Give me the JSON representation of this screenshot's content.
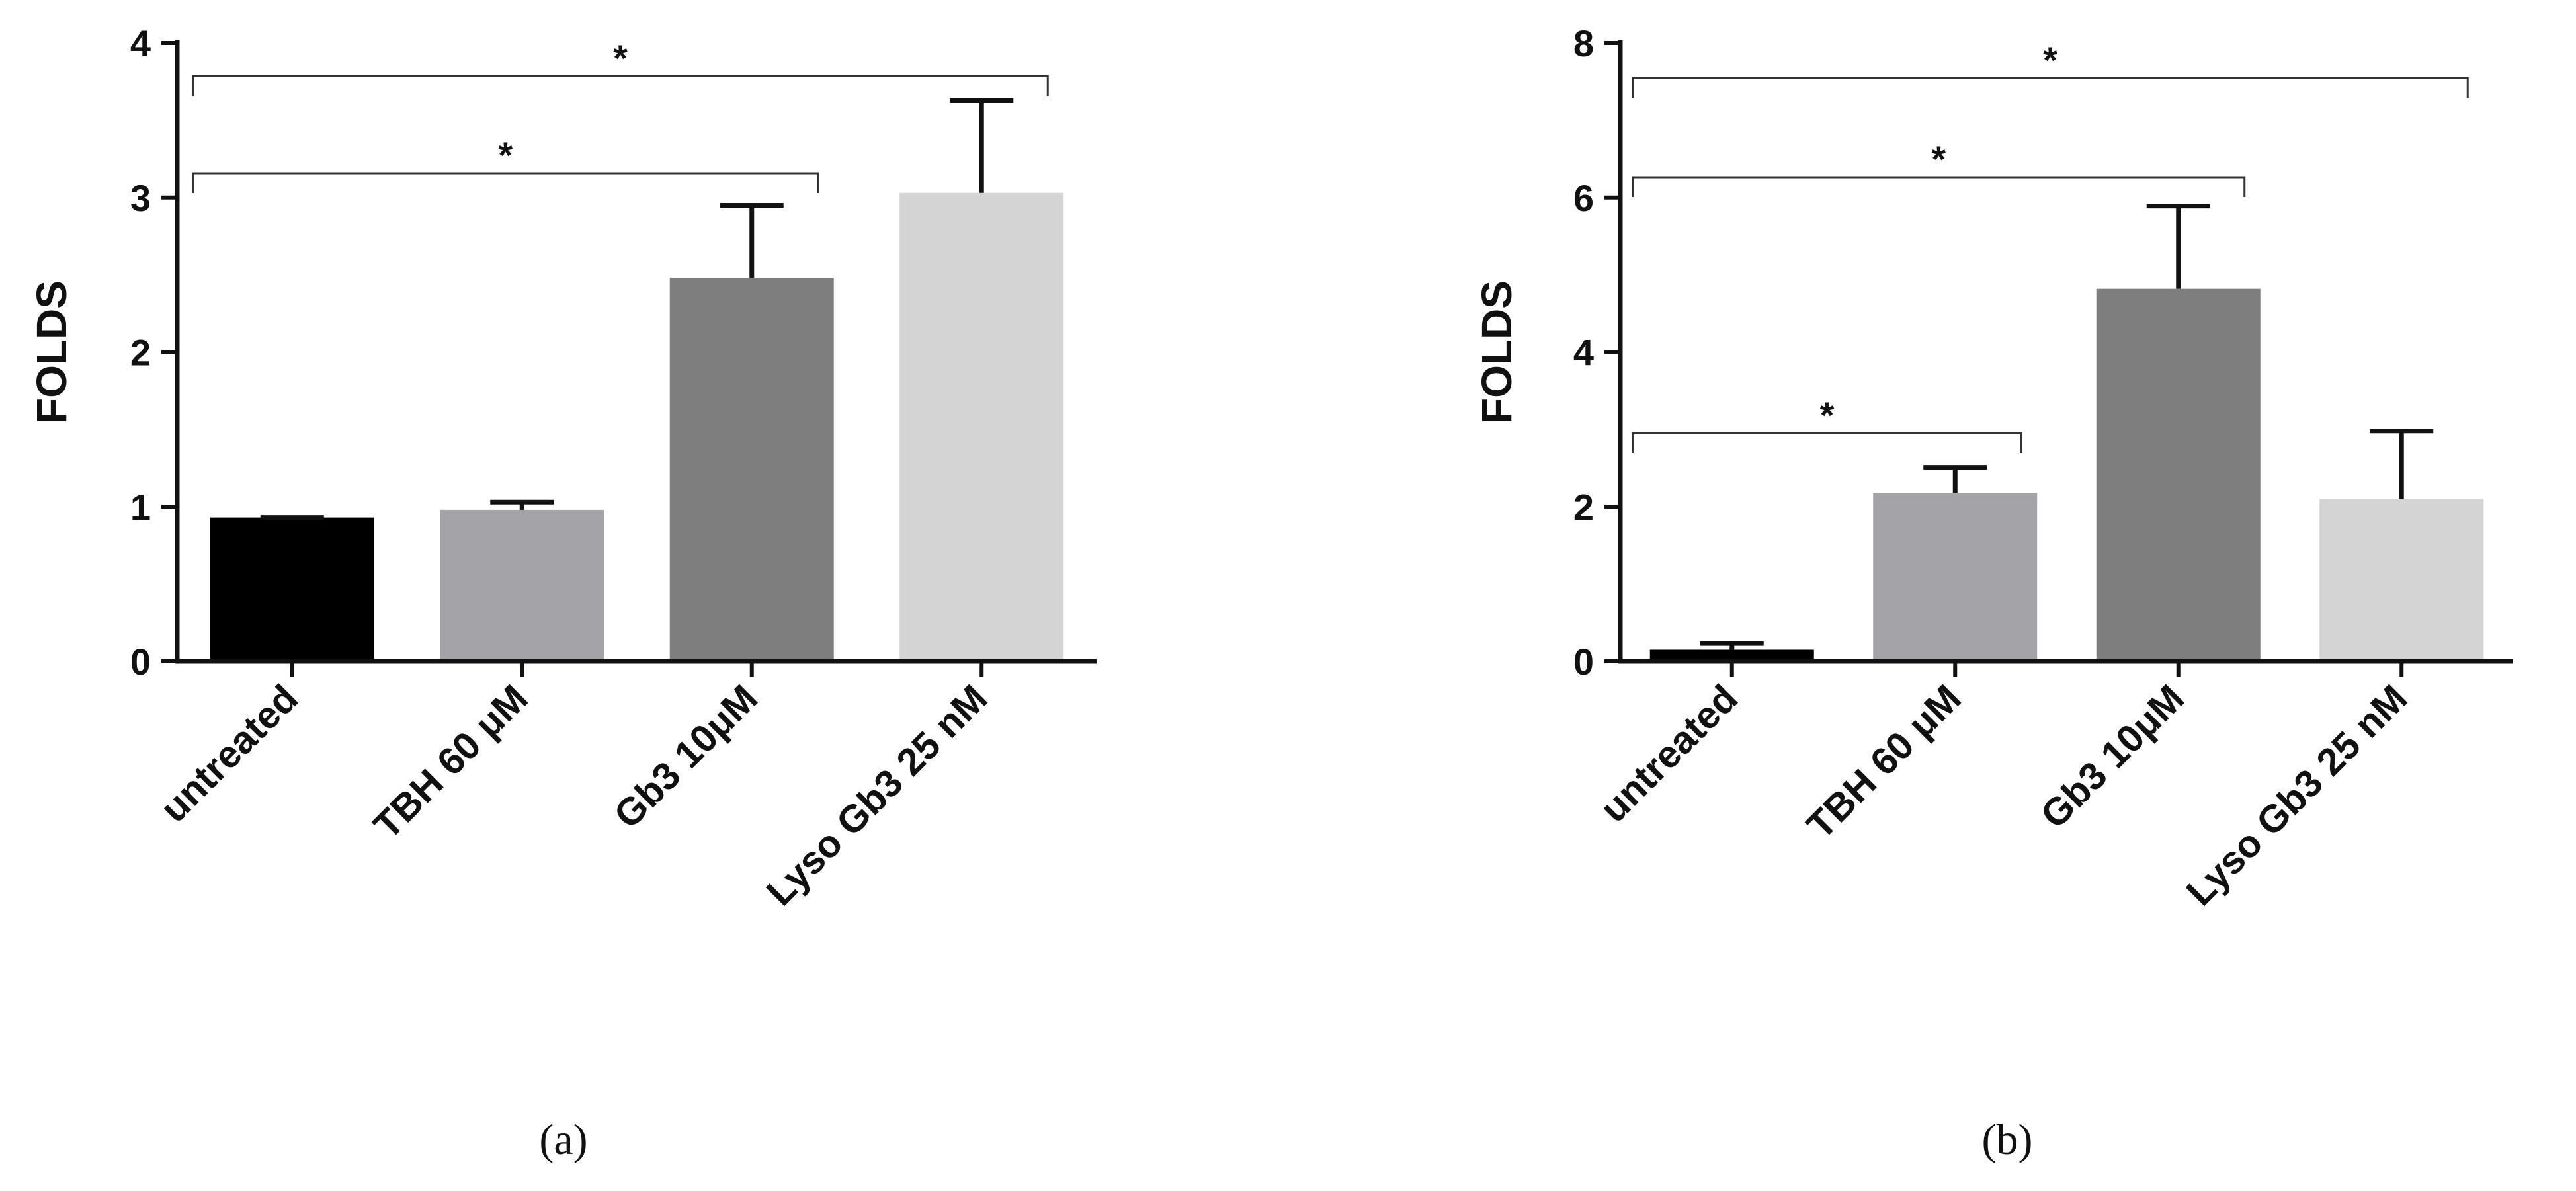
{
  "chart_data": [
    {
      "type": "bar",
      "panel_label": "(a)",
      "ylabel": "FOLDS",
      "ylim": [
        0,
        4
      ],
      "yticks": [
        "0",
        "1",
        "2",
        "3",
        "4"
      ],
      "categories": [
        "untreated",
        "TBH 60 μM",
        "Gb3 10μM",
        "Lyso Gb3 25 nM"
      ],
      "values": [
        0.93,
        0.98,
        2.48,
        3.03
      ],
      "errors": [
        0.0,
        0.05,
        0.47,
        0.6
      ],
      "colors": [
        "#000000",
        "#a4a4a8",
        "#7e7e7e",
        "#d4d4d4"
      ],
      "significance": [
        {
          "from": 0,
          "to": 2,
          "label": "*"
        },
        {
          "from": 0,
          "to": 3,
          "label": "*"
        }
      ]
    },
    {
      "type": "bar",
      "panel_label": "(b)",
      "ylabel": "FOLDS",
      "ylim": [
        0,
        8
      ],
      "yticks": [
        "0",
        "2",
        "4",
        "6",
        "8"
      ],
      "categories": [
        "untreated",
        "TBH 60 μM",
        "Gb3 10μM",
        "Lyso Gb3 25 nM"
      ],
      "values": [
        0.15,
        2.18,
        4.82,
        2.1
      ],
      "errors": [
        0.08,
        0.33,
        1.07,
        0.88
      ],
      "colors": [
        "#000000",
        "#a4a4a8",
        "#7e7e7e",
        "#d4d4d4"
      ],
      "significance": [
        {
          "from": 0,
          "to": 1,
          "label": "*"
        },
        {
          "from": 0,
          "to": 2,
          "label": "*"
        },
        {
          "from": 0,
          "to": 3,
          "label": "*"
        }
      ]
    }
  ]
}
